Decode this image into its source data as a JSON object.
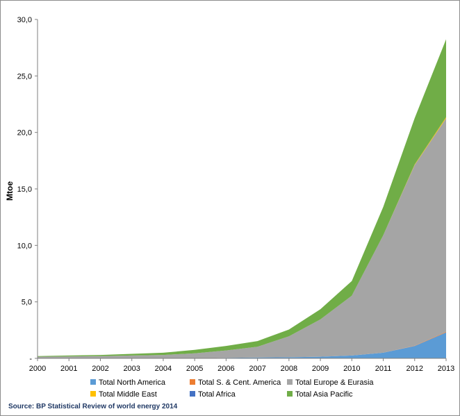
{
  "chart_data": {
    "type": "area",
    "stacked": true,
    "ylabel": "Mtoe",
    "ylim": [
      0,
      30
    ],
    "ytick_labels": [
      "-",
      "5,0",
      "10,0",
      "15,0",
      "20,0",
      "25,0",
      "30,0"
    ],
    "ytick_values": [
      0,
      5,
      10,
      15,
      20,
      25,
      30
    ],
    "x": [
      "2000",
      "2001",
      "2002",
      "2003",
      "2004",
      "2005",
      "2006",
      "2007",
      "2008",
      "2009",
      "2010",
      "2011",
      "2012",
      "2013"
    ],
    "grid": false,
    "legend_position": "bottom",
    "series": [
      {
        "name": "Total North America",
        "color": "#5b9bd5",
        "values": [
          0.0,
          0.0,
          0.0,
          0.0,
          0.0,
          0.0,
          0.05,
          0.08,
          0.1,
          0.15,
          0.25,
          0.5,
          1.1,
          2.3
        ]
      },
      {
        "name": "Total S. & Cent. America",
        "color": "#ed7d31",
        "values": [
          0,
          0,
          0,
          0,
          0,
          0,
          0,
          0,
          0,
          0,
          0,
          0,
          0.02,
          0.05
        ]
      },
      {
        "name": "Total Europe & Eurasia",
        "color": "#a5a5a5",
        "values": [
          0.15,
          0.17,
          0.2,
          0.25,
          0.3,
          0.45,
          0.65,
          0.95,
          1.85,
          3.3,
          5.3,
          10.4,
          16.0,
          18.9
        ]
      },
      {
        "name": "Total Middle East",
        "color": "#ffc000",
        "values": [
          0,
          0,
          0,
          0,
          0,
          0,
          0,
          0,
          0,
          0,
          0,
          0,
          0.05,
          0.1
        ]
      },
      {
        "name": "Total Africa",
        "color": "#4472c4",
        "values": [
          0,
          0,
          0,
          0,
          0,
          0,
          0,
          0,
          0,
          0,
          0,
          0,
          0,
          0
        ]
      },
      {
        "name": "Total Asia Pacific",
        "color": "#70ad47",
        "values": [
          0.05,
          0.08,
          0.1,
          0.15,
          0.2,
          0.3,
          0.4,
          0.5,
          0.6,
          0.9,
          1.3,
          2.5,
          4.1,
          6.9
        ]
      }
    ]
  },
  "source_text": "Source: BP Statistical Review of world energy  2014"
}
